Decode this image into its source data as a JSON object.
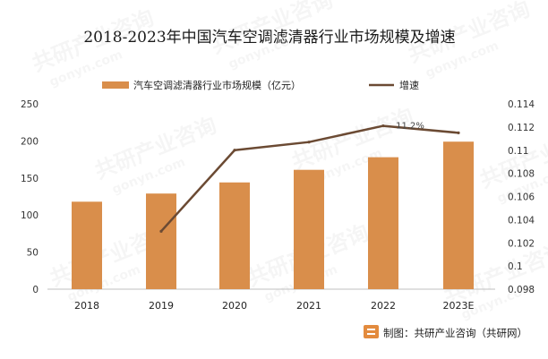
{
  "chart_data": {
    "type": "bar+line",
    "title": "2018-2023年中国汽车空调滤清器行业市场规模及增速",
    "categories": [
      "2018",
      "2019",
      "2020",
      "2021",
      "2022",
      "2023E"
    ],
    "series": [
      {
        "name": "汽车空调滤清器行业市场规模（亿元）",
        "type": "bar",
        "axis": "left",
        "values": [
          118,
          129,
          144,
          161,
          178,
          199
        ]
      },
      {
        "name": "增速",
        "type": "line",
        "axis": "right",
        "values": [
          null,
          0.103,
          0.11,
          0.1107,
          0.1121,
          0.1115
        ]
      }
    ],
    "y_left": {
      "min": 0,
      "max": 250,
      "step": 50,
      "ticks": [
        "0",
        "50",
        "100",
        "150",
        "200",
        "250"
      ]
    },
    "y_right": {
      "min": 0.098,
      "max": 0.114,
      "step": 0.002,
      "ticks": [
        "0.098",
        "0.1",
        "0.102",
        "0.104",
        "0.106",
        "0.108",
        "0.11",
        "0.112",
        "0.114"
      ]
    },
    "data_labels": [
      {
        "category": "2022",
        "series": "增速",
        "text": "11.2%"
      }
    ],
    "legend": {
      "position": "top"
    },
    "grid": false,
    "colors": {
      "bar": "#d98e4b",
      "line": "#6b4a33"
    }
  },
  "source_credit": "制图：共研产业咨询（共研网）",
  "watermark": {
    "brand": "共研产业咨询",
    "site": "gonyn.com"
  }
}
